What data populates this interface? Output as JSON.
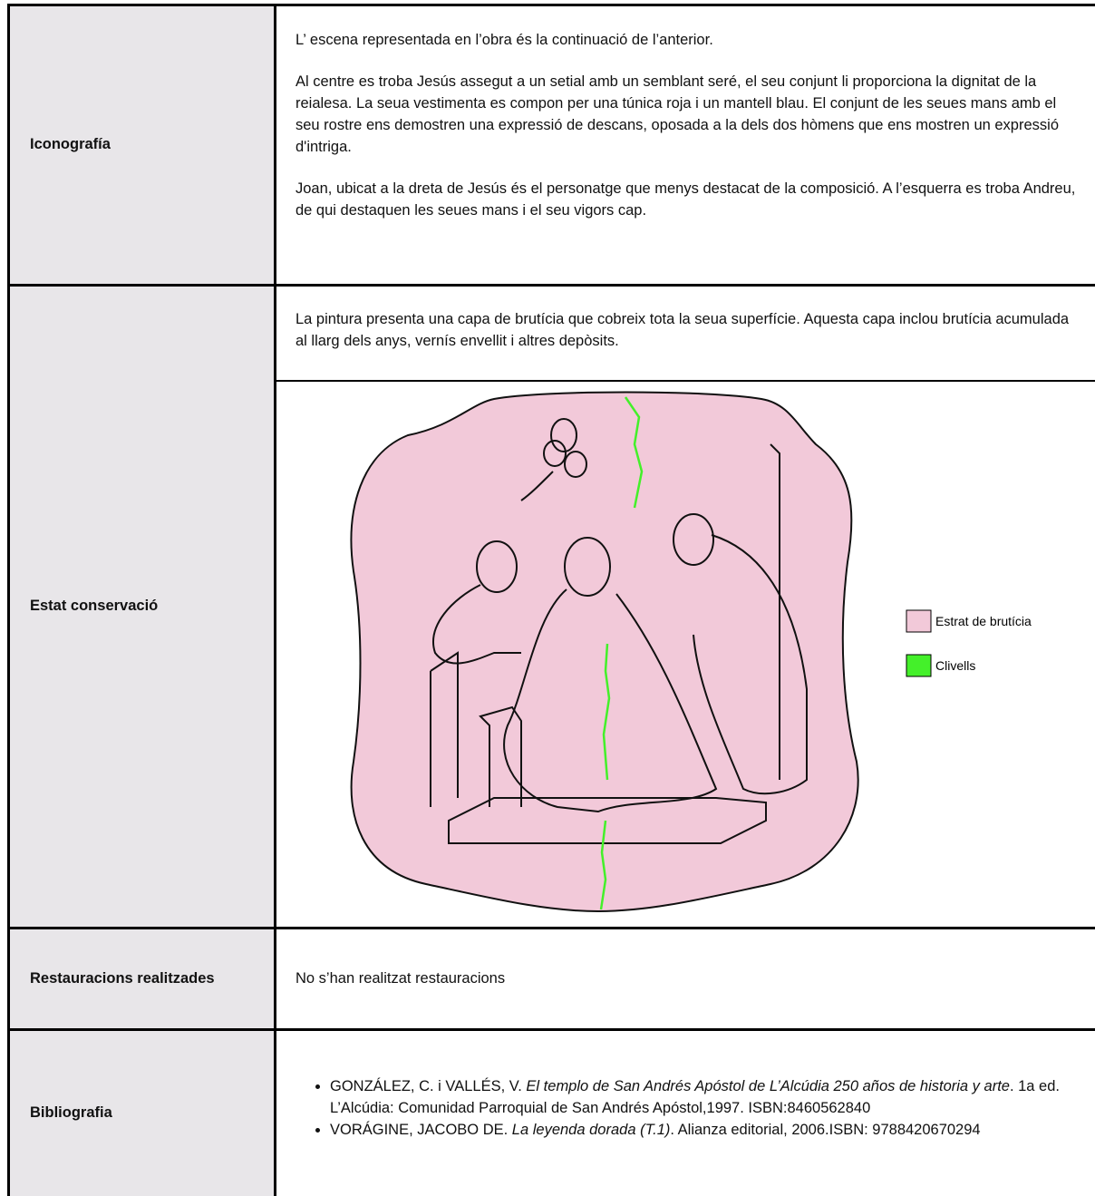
{
  "table": {
    "rows": [
      {
        "label": "Iconografía",
        "paragraphs": [
          "L’ escena representada en l’obra és la continuació de l’anterior.",
          "Al centre es troba Jesús assegut a un setial amb un semblant seré, el seu conjunt li proporciona la dignitat de la reialesa. La seua vestimenta es compon per una túnica roja i un mantell blau. El conjunt de les seues mans amb el seu rostre ens demostren una expressió de descans, oposada a la dels dos hòmens que ens mostren un expressió d'intriga.",
          "Joan, ubicat a la dreta de Jesús és el personatge que menys destacat de la composició. A l’esquerra es troba Andreu, de qui destaquen les seues mans i el seu vigors cap."
        ]
      },
      {
        "label": "Estat conservació",
        "paragraphs": [
          "La pintura presenta una capa de brutícia que cobreix tota la seua superfície. Aquesta capa inclou brutícia acumulada al llarg dels anys, vernís envellit i altres depòsits."
        ],
        "legend": [
          {
            "label": "Estrat de brutícia",
            "color": "#f2c9d9"
          },
          {
            "label": "Clivells",
            "color": "#44f02a"
          }
        ]
      },
      {
        "label": "Restauracions realitzades",
        "paragraphs": [
          "No s’han realitzat restauracions"
        ]
      },
      {
        "label": "Bibliografia",
        "items": [
          [
            {
              "text": "GONZÁLEZ, C. i VALLÉS, V. "
            },
            {
              "text": "El templo de San Andrés Apóstol de L’Alcúdia 250 años de historia y arte",
              "italic": true
            },
            {
              "text": ". 1a ed. L’Alcúdia: Comunidad Parroquial de San Andrés Apóstol,1997. ISBN:8460562840"
            }
          ],
          [
            {
              "text": "VORÁGINE, JACOBO DE. "
            },
            {
              "text": "La leyenda dorada (T.1)",
              "italic": true
            },
            {
              "text": ". Alianza editorial, 2006.ISBN: 9788420670294"
            }
          ]
        ]
      }
    ]
  }
}
